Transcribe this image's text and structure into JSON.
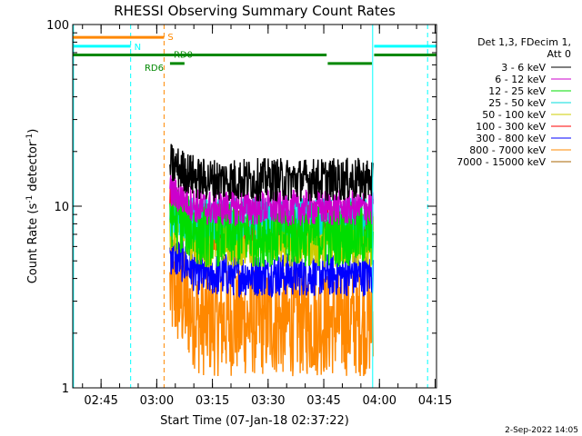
{
  "chart_data": {
    "type": "line",
    "title": "RHESSI Observing Summary Count Rates",
    "xlabel": "Start Time (07-Jan-18 02:37:22)",
    "ylabel_main": "Count Rate (s",
    "ylabel_sup1": "-1",
    "ylabel_mid": " detector",
    "ylabel_sup2": "-1",
    "ylabel_end": ")",
    "y_scale": "log",
    "ylim": [
      1,
      100
    ],
    "xlim_minutes": [
      0,
      98
    ],
    "x_ticks": [
      {
        "label": "02:45",
        "minute": 7.63
      },
      {
        "label": "03:00",
        "minute": 22.63
      },
      {
        "label": "03:15",
        "minute": 37.63
      },
      {
        "label": "03:30",
        "minute": 52.63
      },
      {
        "label": "03:45",
        "minute": 67.63
      },
      {
        "label": "04:00",
        "minute": 82.63
      },
      {
        "label": "04:15",
        "minute": 97.63
      }
    ],
    "y_ticks": [
      {
        "label": "1",
        "value": 1
      },
      {
        "label": "10",
        "value": 10
      },
      {
        "label": "100",
        "value": 100
      }
    ],
    "legend_header": [
      "Det 1,3, FDecim 1,",
      "Att 0"
    ],
    "series": [
      {
        "name": "3 - 6 keV",
        "color": "#000000",
        "level": 14.0,
        "start_level": 17.0,
        "spread": 0.12
      },
      {
        "name": "6 - 12 keV",
        "color": "#cc00cc",
        "level": 9.8,
        "start_level": 12.0,
        "spread": 0.1
      },
      {
        "name": "12 - 25 keV",
        "color": "#00dd00",
        "level": 7.0,
        "start_level": 9.0,
        "spread": 0.18
      },
      {
        "name": "25 - 50 keV",
        "color": "#00dddd",
        "level": 8.5,
        "start_level": 9.0,
        "spread": 0.12
      },
      {
        "name": "50 - 100 keV",
        "color": "#cccc00",
        "level": 6.5,
        "start_level": 8.0,
        "spread": 0.15
      },
      {
        "name": "100 - 300 keV",
        "color": "#ff0000",
        "level": 7.5,
        "start_level": 11.0,
        "spread": 0.12
      },
      {
        "name": "300 - 800 keV",
        "color": "#0000ff",
        "level": 4.2,
        "start_level": 5.5,
        "spread": 0.12
      },
      {
        "name": "800 - 7000 keV",
        "color": "#ff8800",
        "level": 2.3,
        "start_level": 3.5,
        "spread": 0.3
      },
      {
        "name": "7000 - 15000 keV",
        "color": "#aa6600",
        "level": 0,
        "start_level": 0,
        "spread": 0
      }
    ],
    "data_window_minutes": [
      3.0,
      80.8
    ],
    "flare_window_minutes": [
      26.2,
      80.8
    ],
    "state_bars": [
      {
        "label": "S",
        "color": "#ff8800",
        "segments": [
          [
            0,
            24.6
          ]
        ],
        "level": 85
      },
      {
        "label": "N",
        "color": "#00ffff",
        "segments": [
          [
            0,
            15.6
          ],
          [
            81.2,
            98
          ]
        ],
        "level": 76
      },
      {
        "label": "RD0",
        "color": "#008800",
        "segments": [
          [
            0,
            68.4
          ],
          [
            81.2,
            98
          ]
        ],
        "level": 68
      },
      {
        "label": "RD6",
        "color": "#008800",
        "segments": [
          [
            26.2,
            30.1
          ],
          [
            68.7,
            80.6
          ]
        ],
        "level": 61
      }
    ],
    "vertical_markers": [
      {
        "minute": 0.2,
        "color": "#00ffff",
        "style": "solid"
      },
      {
        "minute": 15.6,
        "color": "#00ffff",
        "style": "dashed"
      },
      {
        "minute": 24.6,
        "color": "#ff8800",
        "style": "dashed"
      },
      {
        "minute": 80.8,
        "color": "#00ffff",
        "style": "solid"
      },
      {
        "minute": 95.6,
        "color": "#00ffff",
        "style": "dashed"
      }
    ],
    "timestamp": "2-Sep-2022 14:05"
  }
}
